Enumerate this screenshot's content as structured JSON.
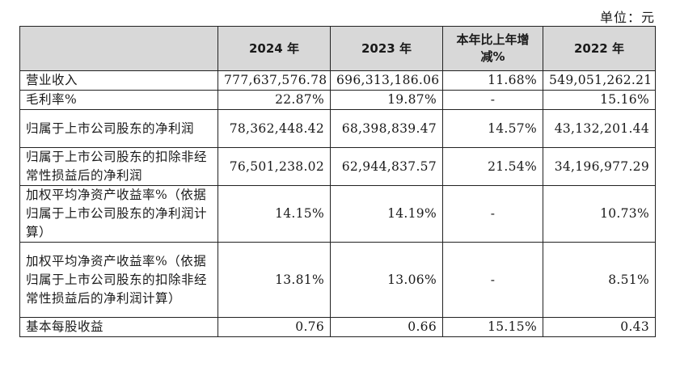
{
  "unit_label": "单位：元",
  "header": {
    "col0": "",
    "col1": "2024 年",
    "col2": "2023 年",
    "col3": "本年比上年增减%",
    "col4": "2022 年"
  },
  "rows": [
    {
      "label": "营业收入",
      "v2024": "777,637,576.78",
      "v2023": "696,313,186.06",
      "change": "11.68%",
      "v2022": "549,051,262.21"
    },
    {
      "label": "毛利率%",
      "v2024": "22.87%",
      "v2023": "19.87%",
      "change": "-",
      "v2022": "15.16%"
    },
    {
      "label": "归属于上市公司股东的净利润",
      "v2024": "78,362,448.42",
      "v2023": "68,398,839.47",
      "change": "14.57%",
      "v2022": "43,132,201.44"
    },
    {
      "label": "归属于上市公司股东的扣除非经常性损益后的净利润",
      "v2024": "76,501,238.02",
      "v2023": "62,944,837.57",
      "change": "21.54%",
      "v2022": "34,196,977.29"
    },
    {
      "label": "加权平均净资产收益率%（依据归属于上市公司股东的净利润计算）",
      "v2024": "14.15%",
      "v2023": "14.19%",
      "change": "-",
      "v2022": "10.73%"
    },
    {
      "label": "加权平均净资产收益率%（依据归属于上市公司股东的扣除非经常性损益后的净利润计算）",
      "v2024": "13.81%",
      "v2023": "13.06%",
      "change": "-",
      "v2022": "8.51%"
    },
    {
      "label": "基本每股收益",
      "v2024": "0.76",
      "v2023": "0.66",
      "change": "15.15%",
      "v2022": "0.43"
    }
  ]
}
